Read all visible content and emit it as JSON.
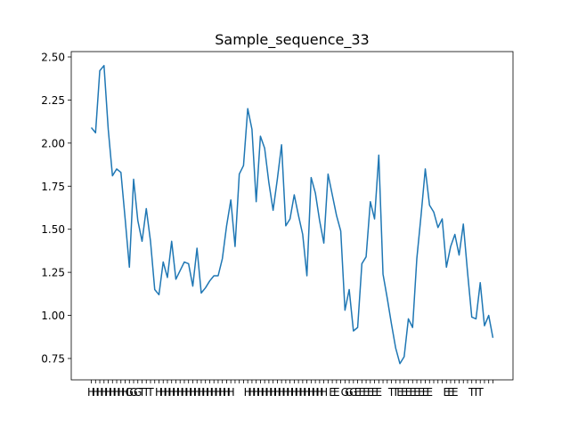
{
  "chart_data": {
    "type": "line",
    "title": "Sample_sequence_33",
    "categories": [
      "H",
      "H",
      "H",
      "H",
      "H",
      "H",
      "H",
      "H",
      "H",
      "G",
      "G",
      "G",
      "T",
      "T",
      "T",
      null,
      "H",
      "H",
      "H",
      "H",
      "H",
      "H",
      "H",
      "H",
      "H",
      "H",
      "H",
      "H",
      "H",
      "H",
      "H",
      "H",
      "H",
      "H",
      null,
      null,
      null,
      "H",
      "H",
      "H",
      "H",
      "H",
      "H",
      "H",
      "H",
      "H",
      "H",
      "H",
      "H",
      "H",
      "H",
      "H",
      "H",
      "H",
      "H",
      "H",
      null,
      "E",
      "E",
      null,
      "G",
      "G",
      "G",
      "E",
      "E",
      "E",
      "E",
      "E",
      "E",
      null,
      null,
      "T",
      "T",
      "E",
      "E",
      "E",
      "E",
      "E",
      "E",
      "E",
      "E",
      null,
      null,
      null,
      "E",
      "E",
      "E",
      null,
      null,
      null,
      "T",
      "T",
      "T",
      null,
      null,
      null
    ],
    "series": [
      {
        "color": "#1f77b4",
        "values": [
          2.09,
          2.06,
          2.42,
          2.45,
          2.08,
          1.81,
          1.85,
          1.83,
          1.56,
          1.28,
          1.79,
          1.55,
          1.43,
          1.62,
          1.43,
          1.15,
          1.12,
          1.31,
          1.22,
          1.43,
          1.21,
          1.26,
          1.31,
          1.3,
          1.17,
          1.39,
          1.13,
          1.16,
          1.2,
          1.23,
          1.23,
          1.33,
          1.52,
          1.67,
          1.4,
          1.82,
          1.87,
          2.2,
          2.08,
          1.66,
          2.04,
          1.97,
          1.77,
          1.61,
          1.79,
          1.99,
          1.52,
          1.56,
          1.7,
          1.58,
          1.47,
          1.23,
          1.8,
          1.71,
          1.55,
          1.42,
          1.82,
          1.7,
          1.58,
          1.49,
          1.03,
          1.15,
          0.91,
          0.93,
          1.3,
          1.34,
          1.66,
          1.56,
          1.93,
          1.24,
          1.1,
          0.95,
          0.81,
          0.72,
          0.76,
          0.98,
          0.93,
          1.33,
          1.58,
          1.85,
          1.64,
          1.6,
          1.51,
          1.56,
          1.28,
          1.4,
          1.47,
          1.35,
          1.53,
          1.25,
          0.99,
          0.98,
          1.19,
          0.94,
          1.0,
          0.87
        ]
      }
    ],
    "ylim": [
      0.626,
      2.531
    ],
    "yticks": [
      0.75,
      {
        "value": 1.0,
        "label": "1.00"
      },
      1.25,
      {
        "value": 1.5,
        "label": "1.50"
      },
      1.75,
      {
        "value": 2.0,
        "label": "2.00"
      },
      2.25,
      {
        "value": 2.5,
        "label": "2.50"
      }
    ]
  }
}
